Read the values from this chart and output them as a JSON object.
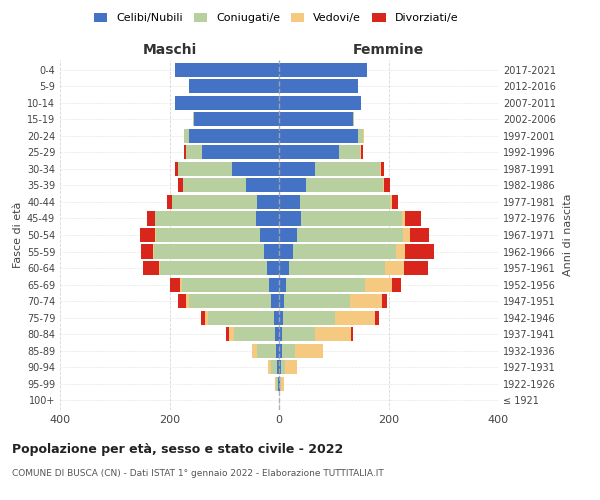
{
  "age_groups": [
    "100+",
    "95-99",
    "90-94",
    "85-89",
    "80-84",
    "75-79",
    "70-74",
    "65-69",
    "60-64",
    "55-59",
    "50-54",
    "45-49",
    "40-44",
    "35-39",
    "30-34",
    "25-29",
    "20-24",
    "15-19",
    "10-14",
    "5-9",
    "0-4"
  ],
  "birth_years": [
    "≤ 1921",
    "1922-1926",
    "1927-1931",
    "1932-1936",
    "1937-1941",
    "1942-1946",
    "1947-1951",
    "1952-1956",
    "1957-1961",
    "1962-1966",
    "1967-1971",
    "1972-1976",
    "1977-1981",
    "1982-1986",
    "1987-1991",
    "1992-1996",
    "1997-2001",
    "2002-2006",
    "2007-2011",
    "2012-2016",
    "2017-2021"
  ],
  "maschi": {
    "celibe": [
      0,
      2,
      3,
      5,
      8,
      10,
      15,
      18,
      22,
      28,
      35,
      42,
      40,
      60,
      85,
      140,
      165,
      155,
      190,
      165,
      190
    ],
    "coniugato": [
      0,
      3,
      12,
      35,
      75,
      120,
      150,
      160,
      195,
      200,
      190,
      185,
      155,
      115,
      100,
      30,
      8,
      2,
      0,
      0,
      0
    ],
    "vedovo": [
      0,
      2,
      6,
      10,
      8,
      5,
      4,
      3,
      2,
      2,
      1,
      0,
      0,
      0,
      0,
      0,
      0,
      0,
      0,
      0,
      0
    ],
    "divorziato": [
      0,
      0,
      0,
      0,
      5,
      8,
      15,
      18,
      30,
      22,
      28,
      15,
      10,
      10,
      5,
      3,
      0,
      0,
      0,
      0,
      0
    ]
  },
  "femmine": {
    "nubile": [
      0,
      2,
      3,
      5,
      6,
      8,
      10,
      12,
      18,
      25,
      32,
      40,
      38,
      50,
      65,
      110,
      145,
      135,
      150,
      145,
      160
    ],
    "coniugata": [
      0,
      2,
      8,
      25,
      60,
      95,
      120,
      145,
      175,
      188,
      195,
      185,
      165,
      140,
      120,
      38,
      8,
      2,
      0,
      0,
      0
    ],
    "vedova": [
      0,
      5,
      22,
      50,
      65,
      72,
      58,
      50,
      35,
      18,
      12,
      6,
      3,
      2,
      2,
      2,
      2,
      0,
      0,
      0,
      0
    ],
    "divorziata": [
      0,
      0,
      0,
      0,
      5,
      8,
      10,
      15,
      45,
      52,
      35,
      28,
      12,
      10,
      5,
      3,
      0,
      0,
      0,
      0,
      0
    ]
  },
  "colors": {
    "celibe": "#4472c4",
    "coniugato": "#b8cfa0",
    "vedovo": "#f5c97f",
    "divorziato": "#d9261c"
  },
  "xlim": 400,
  "title": "Popolazione per età, sesso e stato civile - 2022",
  "subtitle": "COMUNE DI BUSCA (CN) - Dati ISTAT 1° gennaio 2022 - Elaborazione TUTTITALIA.IT",
  "ylabel_left": "Fasce di età",
  "ylabel_right": "Anni di nascita",
  "xlabel_left": "Maschi",
  "xlabel_right": "Femmine",
  "legend_labels": [
    "Celibi/Nubili",
    "Coniugati/e",
    "Vedovi/e",
    "Divorziati/e"
  ],
  "background_color": "#ffffff",
  "legend_marker_size": 10,
  "bar_height": 0.85
}
